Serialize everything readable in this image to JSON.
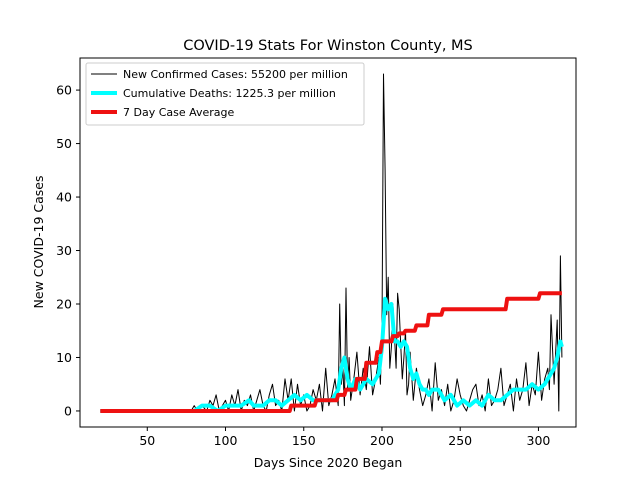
{
  "chart_data": {
    "type": "line",
    "title": "COVID-19 Stats For Winston County, MS",
    "xlabel": "Days Since 2020 Began",
    "ylabel": "New COVID-19 Cases",
    "xlim": [
      7,
      324
    ],
    "ylim": [
      -3,
      66
    ],
    "xticks": [
      50,
      100,
      150,
      200,
      250,
      300
    ],
    "yticks": [
      0,
      10,
      20,
      30,
      40,
      50,
      60
    ],
    "grid": false,
    "legend_position": "top-left",
    "series": [
      {
        "name": "New Confirmed Cases: 55200 per million",
        "color": "#000000",
        "line_width": 1,
        "x": [
          20,
          40,
          60,
          78,
          80,
          82,
          85,
          88,
          90,
          92,
          94,
          96,
          98,
          100,
          102,
          104,
          106,
          108,
          110,
          112,
          114,
          116,
          118,
          120,
          122,
          124,
          126,
          128,
          130,
          132,
          134,
          136,
          138,
          140,
          142,
          144,
          146,
          148,
          150,
          152,
          154,
          156,
          158,
          160,
          162,
          164,
          166,
          168,
          170,
          172,
          173,
          174,
          175,
          176,
          177,
          178,
          179,
          180,
          182,
          184,
          186,
          188,
          190,
          192,
          194,
          196,
          198,
          199,
          200,
          201,
          202,
          203,
          204,
          205,
          206,
          207,
          208,
          209,
          210,
          211,
          212,
          213,
          214,
          215,
          216,
          217,
          218,
          220,
          222,
          224,
          226,
          228,
          230,
          232,
          234,
          236,
          238,
          240,
          242,
          244,
          246,
          248,
          250,
          252,
          254,
          256,
          258,
          260,
          262,
          264,
          266,
          268,
          270,
          272,
          274,
          276,
          278,
          280,
          282,
          284,
          286,
          288,
          290,
          292,
          294,
          296,
          298,
          300,
          302,
          304,
          306,
          307,
          308,
          310,
          312,
          313,
          314,
          315
        ],
        "y": [
          0,
          0,
          0,
          0,
          1,
          0,
          1,
          0,
          2,
          1,
          3,
          0,
          1,
          2,
          0,
          3,
          1,
          4,
          0,
          2,
          1,
          3,
          0,
          2,
          4,
          1,
          0,
          3,
          5,
          1,
          2,
          0,
          6,
          2,
          6,
          0,
          5,
          1,
          3,
          0,
          1,
          4,
          2,
          5,
          0,
          8,
          1,
          3,
          6,
          1,
          20,
          5,
          8,
          1,
          23,
          4,
          10,
          2,
          6,
          11,
          3,
          8,
          4,
          12,
          3,
          6,
          10,
          5,
          15,
          63,
          45,
          18,
          25,
          8,
          12,
          20,
          14,
          8,
          22,
          19,
          12,
          6,
          10,
          15,
          3,
          5,
          11,
          2,
          8,
          4,
          1,
          3,
          6,
          0,
          9,
          2,
          4,
          1,
          5,
          0,
          2,
          6,
          3,
          1,
          0,
          2,
          4,
          5,
          1,
          3,
          0,
          6,
          1,
          2,
          4,
          8,
          1,
          3,
          5,
          0,
          6,
          2,
          4,
          9,
          1,
          5,
          3,
          11,
          2,
          6,
          8,
          4,
          18,
          5,
          17,
          0,
          29,
          10
        ]
      },
      {
        "name": "Cumulative Deaths: 1225.3 per million",
        "color": "#00ffff",
        "line_width": 4,
        "x": [
          20,
          80,
          85,
          90,
          95,
          100,
          105,
          110,
          115,
          118,
          120,
          124,
          128,
          132,
          136,
          140,
          144,
          148,
          152,
          156,
          160,
          164,
          168,
          172,
          174,
          176,
          178,
          180,
          183,
          186,
          190,
          194,
          198,
          200,
          202,
          204,
          206,
          208,
          210,
          212,
          214,
          216,
          218,
          220,
          222,
          224,
          226,
          228,
          230,
          232,
          236,
          240,
          244,
          248,
          252,
          256,
          260,
          264,
          268,
          272,
          276,
          280,
          284,
          288,
          292,
          296,
          300,
          304,
          308,
          310,
          312,
          314,
          315
        ],
        "y": [
          0,
          0,
          1,
          1,
          0,
          1,
          1,
          1,
          2,
          1,
          1,
          1,
          2,
          2,
          1,
          2,
          3,
          2,
          3,
          2,
          2,
          2,
          2,
          4,
          8,
          10,
          6,
          4,
          6,
          4,
          6,
          5,
          7,
          12,
          21,
          19,
          20,
          13,
          13,
          12,
          13,
          12,
          8,
          6,
          7,
          5,
          4,
          4,
          3,
          4,
          4,
          2,
          3,
          1,
          2,
          1,
          2,
          1,
          3,
          2,
          2,
          3,
          4,
          4,
          4,
          5,
          4,
          5,
          7,
          8,
          10,
          13,
          12
        ]
      },
      {
        "name": "7 Day Case Average",
        "color": "#ee1111",
        "line_width": 4,
        "x": [
          20,
          141,
          142,
          157,
          158,
          171,
          172,
          176,
          177,
          183,
          184,
          189,
          190,
          196,
          197,
          199,
          200,
          203,
          204,
          206,
          207,
          210,
          211,
          214,
          215,
          221,
          222,
          229,
          230,
          238,
          239,
          279,
          280,
          300,
          301,
          315
        ],
        "y": [
          0,
          0,
          1,
          1,
          2,
          2,
          3,
          3,
          4,
          4,
          6,
          6,
          9,
          9,
          11,
          11,
          13,
          13,
          13,
          13,
          14,
          14,
          14.5,
          14.5,
          15,
          15,
          16,
          16,
          18,
          18,
          19,
          19,
          21,
          21,
          22,
          22
        ]
      }
    ]
  }
}
